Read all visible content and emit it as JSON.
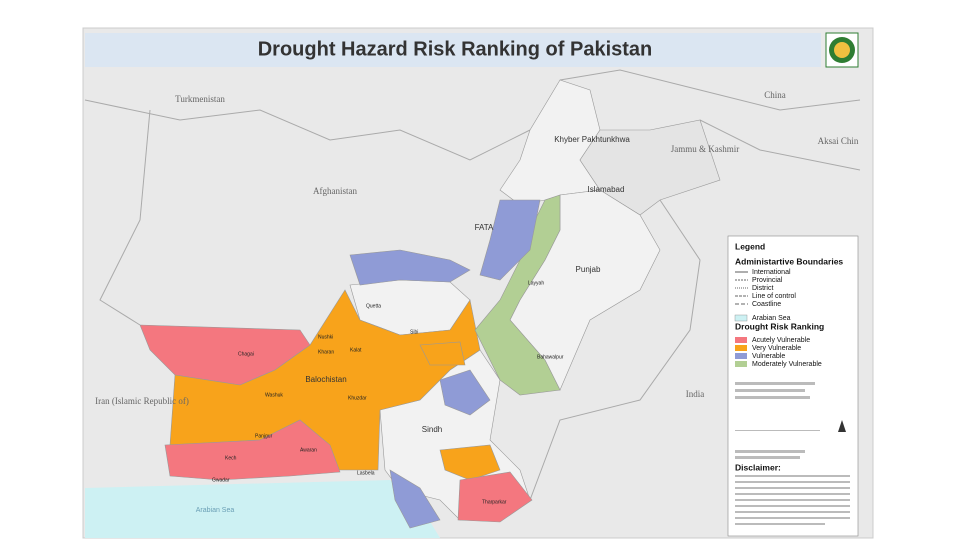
{
  "header": {
    "title": "Drought Hazard Risk Ranking of Pakistan"
  },
  "map": {
    "countries": [
      "Turkmenistan",
      "Afghanistan",
      "Iran (Islamic Republic of)",
      "China",
      "Jammu & Kashmir",
      "Aksai Chin",
      "India"
    ],
    "regions": [
      "Khyber Pakhtunkhwa",
      "FATA",
      "Islamabad",
      "Punjab",
      "Balochistan",
      "Sindh"
    ],
    "districts": [
      "Chagai",
      "Kharan",
      "Washuk",
      "Awaran",
      "Kech",
      "Gwadar",
      "Panjgur",
      "Lasbela",
      "Kalat",
      "Khuzdar",
      "Nushki",
      "Quetta",
      "Sibi",
      "Tharparkar",
      "Bahawalpur",
      "Layyah"
    ],
    "sea": "Arabian Sea"
  },
  "legend": {
    "title": "Legend",
    "boundaries_title": "Administartive Boundaries",
    "boundaries": [
      "International",
      "Provincial",
      "District",
      "Line of control",
      "Coastline",
      "Arabian Sea"
    ],
    "risk_title": "Drought Risk Ranking",
    "risk": [
      {
        "name": "Acutely Vulnerable",
        "color": "#f4777f"
      },
      {
        "name": "Very Vulnerable",
        "color": "#f8a31b"
      },
      {
        "name": "Vulnerable",
        "color": "#8f9bd6"
      },
      {
        "name": "Moderately Vulnerable",
        "color": "#b2cf94"
      }
    ],
    "disclaimer_title": "Disclaimer:"
  }
}
